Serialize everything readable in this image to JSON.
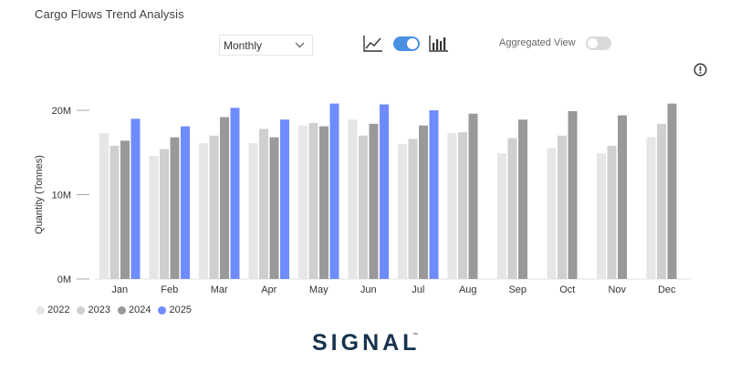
{
  "title": "Cargo Flows Trend Analysis",
  "period_select": {
    "value": "Monthly"
  },
  "controls": {
    "line_icon": "line-chart-icon",
    "bar_icon": "bar-chart-icon",
    "chart_toggle_on": true,
    "aggregated_label": "Aggregated View",
    "aggregated_on": false
  },
  "colors": {
    "2022": "#e6e6e6",
    "2023": "#cfcfcf",
    "2024": "#999999",
    "2025": "#6f8cff",
    "toggle_on": "#4a90e2",
    "brand": "#17324d"
  },
  "brand_logo": "SIGNAL",
  "brand_tm": "™",
  "chart_data": {
    "type": "bar",
    "ylabel": "Quantity (Tonnes)",
    "ylim": [
      0,
      20000000
    ],
    "yticks": [
      {
        "value": 0,
        "label": "0M"
      },
      {
        "value": 10000000,
        "label": "10M"
      },
      {
        "value": 20000000,
        "label": "20M"
      }
    ],
    "categories": [
      "Jan",
      "Feb",
      "Mar",
      "Apr",
      "May",
      "Jun",
      "Jul",
      "Aug",
      "Sep",
      "Oct",
      "Nov",
      "Dec"
    ],
    "legend_position": "bottom-left",
    "series": [
      {
        "name": "2022",
        "values": [
          17.3,
          14.6,
          16.1,
          16.1,
          18.2,
          18.9,
          16.0,
          17.3,
          14.9,
          15.5,
          14.9,
          16.8
        ]
      },
      {
        "name": "2023",
        "values": [
          15.8,
          15.4,
          17.0,
          17.8,
          18.5,
          17.0,
          16.6,
          17.4,
          16.7,
          17.0,
          15.8,
          18.4
        ]
      },
      {
        "name": "2024",
        "values": [
          16.4,
          16.8,
          19.2,
          16.8,
          18.1,
          18.4,
          18.2,
          19.6,
          18.9,
          19.9,
          19.4,
          20.8
        ]
      },
      {
        "name": "2025",
        "values": [
          19.0,
          18.1,
          20.3,
          18.9,
          20.8,
          20.7,
          20.0,
          null,
          null,
          null,
          null,
          null
        ]
      }
    ],
    "units": "values in millions of tonnes"
  }
}
